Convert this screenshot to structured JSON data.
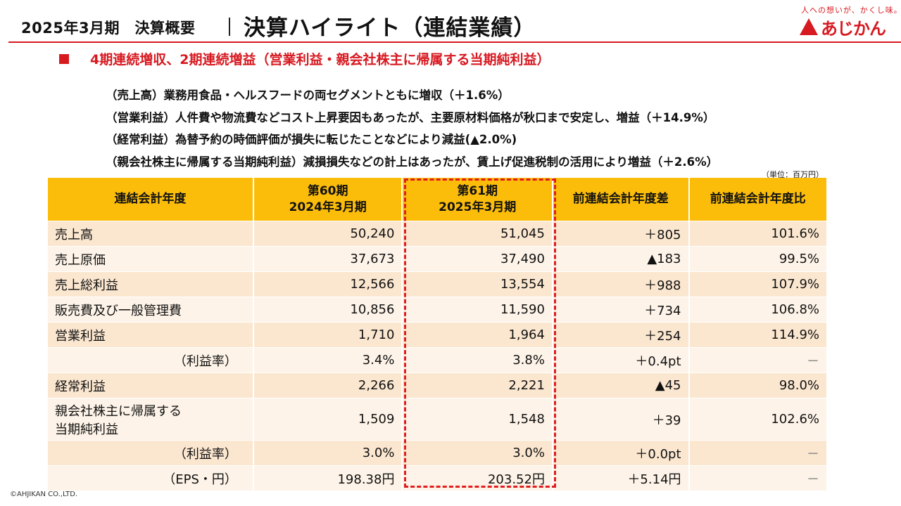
{
  "header": {
    "period": "2025年3月期　決算概要",
    "title": "決算ハイライト（連結業績）"
  },
  "logo": {
    "tagline": "人への想いが、かくし味。",
    "name": "あじかん",
    "brand_color": "#d71920"
  },
  "headline": "4期連続増収、2期連続増益（営業利益・親会社株主に帰属する当期純利益）",
  "notes": [
    "（売上高）業務用食品・ヘルスフードの両セグメントともに増収（＋1.6%）",
    "（営業利益）人件費や物流費などコスト上昇要因もあったが、主要原材料価格が秋口まで安定し、増益（＋14.9%）",
    "（経常利益）為替予約の時価評価が損失に転じたことなどにより減益(▲2.0%)",
    "（親会社株主に帰属する当期純利益）減損損失などの計上はあったが、賃上げ促進税制の活用により増益（＋2.6%）"
  ],
  "unit": "（単位：百万円）",
  "table": {
    "header": {
      "col0": "連結会計年度",
      "col1_line1": "第60期",
      "col1_line2": "2024年3月期",
      "col2_line1": "第61期",
      "col2_line2": "2025年3月期",
      "col3": "前連結会計年度差",
      "col4": "前連結会計年度比"
    },
    "rows": [
      {
        "label": "売上高",
        "prev": "50,240",
        "curr": "51,045",
        "diff": "＋805",
        "ratio": "101.6%"
      },
      {
        "label": "売上原価",
        "prev": "37,673",
        "curr": "37,490",
        "diff": "▲183",
        "ratio": "99.5%"
      },
      {
        "label": "売上総利益",
        "prev": "12,566",
        "curr": "13,554",
        "diff": "＋988",
        "ratio": "107.9%"
      },
      {
        "label": "販売費及び一般管理費",
        "prev": "10,856",
        "curr": "11,590",
        "diff": "＋734",
        "ratio": "106.8%"
      },
      {
        "label": "営業利益",
        "prev": "1,710",
        "curr": "1,964",
        "diff": "＋254",
        "ratio": "114.9%"
      },
      {
        "label": "（利益率）",
        "prev": "3.4%",
        "curr": "3.8%",
        "diff": "＋0.4pt",
        "ratio": "－"
      },
      {
        "label": "経常利益",
        "prev": "2,266",
        "curr": "2,221",
        "diff": "▲45",
        "ratio": "98.0%"
      },
      {
        "label_line1": "親会社株主に帰属する",
        "label_line2": "当期純利益",
        "prev": "1,509",
        "curr": "1,548",
        "diff": "＋39",
        "ratio": "102.6%"
      },
      {
        "label": "（利益率）",
        "prev": "3.0%",
        "curr": "3.0%",
        "diff": "＋0.0pt",
        "ratio": "－"
      },
      {
        "label": "（EPS・円）",
        "prev": "198.38円",
        "curr": "203.52円",
        "diff": "＋5.14円",
        "ratio": "－"
      }
    ],
    "colors": {
      "header_bg": "#fbbd0a",
      "row_odd_bg": "#fbe7d0",
      "row_even_bg": "#fdf3e8",
      "highlight_border": "#e01e1e"
    }
  },
  "footer": "©AHJIKAN CO.,LTD."
}
